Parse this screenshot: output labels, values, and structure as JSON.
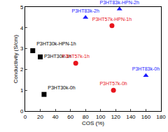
{
  "chart_data": {
    "type": "scatter",
    "xlabel": "COS (%)",
    "ylabel": "Conductivity (S/cm)",
    "xlim": [
      0,
      180
    ],
    "xticks": [
      0,
      20,
      40,
      60,
      80,
      100,
      120,
      140,
      160,
      180
    ],
    "ylim": [
      0,
      5
    ],
    "yticks": [
      0,
      1,
      2,
      3,
      4,
      5
    ],
    "grid": false,
    "series": [
      {
        "color": "#000000",
        "marker": "square",
        "x": [
          10,
          20,
          25
        ],
        "values": [
          2.9,
          2.6,
          0.8
        ],
        "labels": [
          "P3HT30k-HPN-1h",
          "P3HT30k-1h",
          "P3HT30k-0h"
        ]
      },
      {
        "color": "#e8141c",
        "marker": "circle",
        "x": [
          67,
          115,
          117
        ],
        "values": [
          2.3,
          4.1,
          1.0
        ],
        "labels": [
          "P3HT57k-1h",
          "P3HT57k-HPN-1h",
          "P3HT57k-0h"
        ]
      },
      {
        "color": "#1a1aff",
        "marker": "triangle-up",
        "x": [
          80,
          125,
          160
        ],
        "values": [
          4.5,
          4.9,
          1.7
        ],
        "labels": [
          "P3HT83k-2h",
          "P3HT83k-HPN-2h",
          "P3HT83k-0h"
        ]
      }
    ]
  }
}
